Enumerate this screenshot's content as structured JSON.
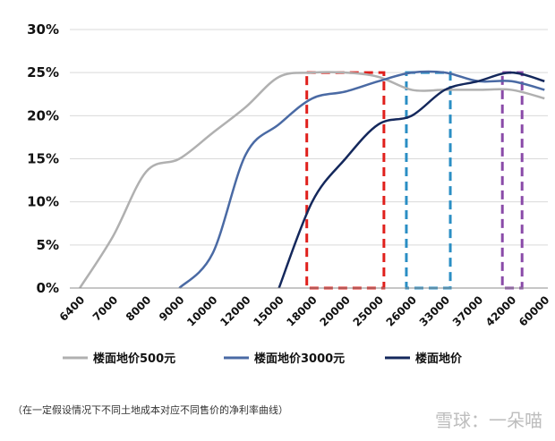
{
  "chart_data": {
    "type": "line",
    "title": "",
    "xlabel": "",
    "ylabel": "",
    "categories": [
      "6400",
      "7000",
      "8000",
      "9000",
      "10000",
      "12000",
      "15000",
      "18000",
      "20000",
      "25000",
      "26000",
      "33000",
      "37000",
      "42000",
      "60000"
    ],
    "ylim": [
      0,
      30
    ],
    "yticks": [
      "0%",
      "5%",
      "10%",
      "15%",
      "20%",
      "25%",
      "30%"
    ],
    "grid": true,
    "legend_position": "bottom",
    "series": [
      {
        "name": "楼面地价500元",
        "color": "#b0b0b0",
        "values": [
          0,
          6,
          13.5,
          15,
          18,
          21,
          24.5,
          25,
          25,
          24.5,
          23,
          23,
          23,
          23,
          22
        ]
      },
      {
        "name": "楼面地价3000元",
        "color": "#4a6aa4",
        "values": [
          null,
          null,
          null,
          0,
          4,
          15.5,
          19,
          22,
          22.8,
          24,
          25,
          25,
          24,
          24,
          23
        ]
      },
      {
        "name": "楼面地价",
        "color": "#14285c",
        "values": [
          null,
          null,
          null,
          null,
          null,
          null,
          0,
          10,
          15,
          19,
          20,
          23,
          24,
          25,
          24
        ]
      }
    ],
    "highlight_boxes": [
      {
        "color": "#e0201c",
        "x_from": "18000",
        "x_to": "25000",
        "y_from": 0,
        "y_to": 25
      },
      {
        "color": "#2a8ec4",
        "x_from": "26000",
        "x_to": "33000",
        "y_from": 0,
        "y_to": 25
      },
      {
        "color": "#8a4aa8",
        "x_from": "42000",
        "x_to": "42000",
        "y_from": 0,
        "y_to": 25
      }
    ]
  },
  "caption": "（在一定假设情况下不同土地成本对应不同售价的净利率曲线）",
  "watermark": "雪球：一朵喵"
}
